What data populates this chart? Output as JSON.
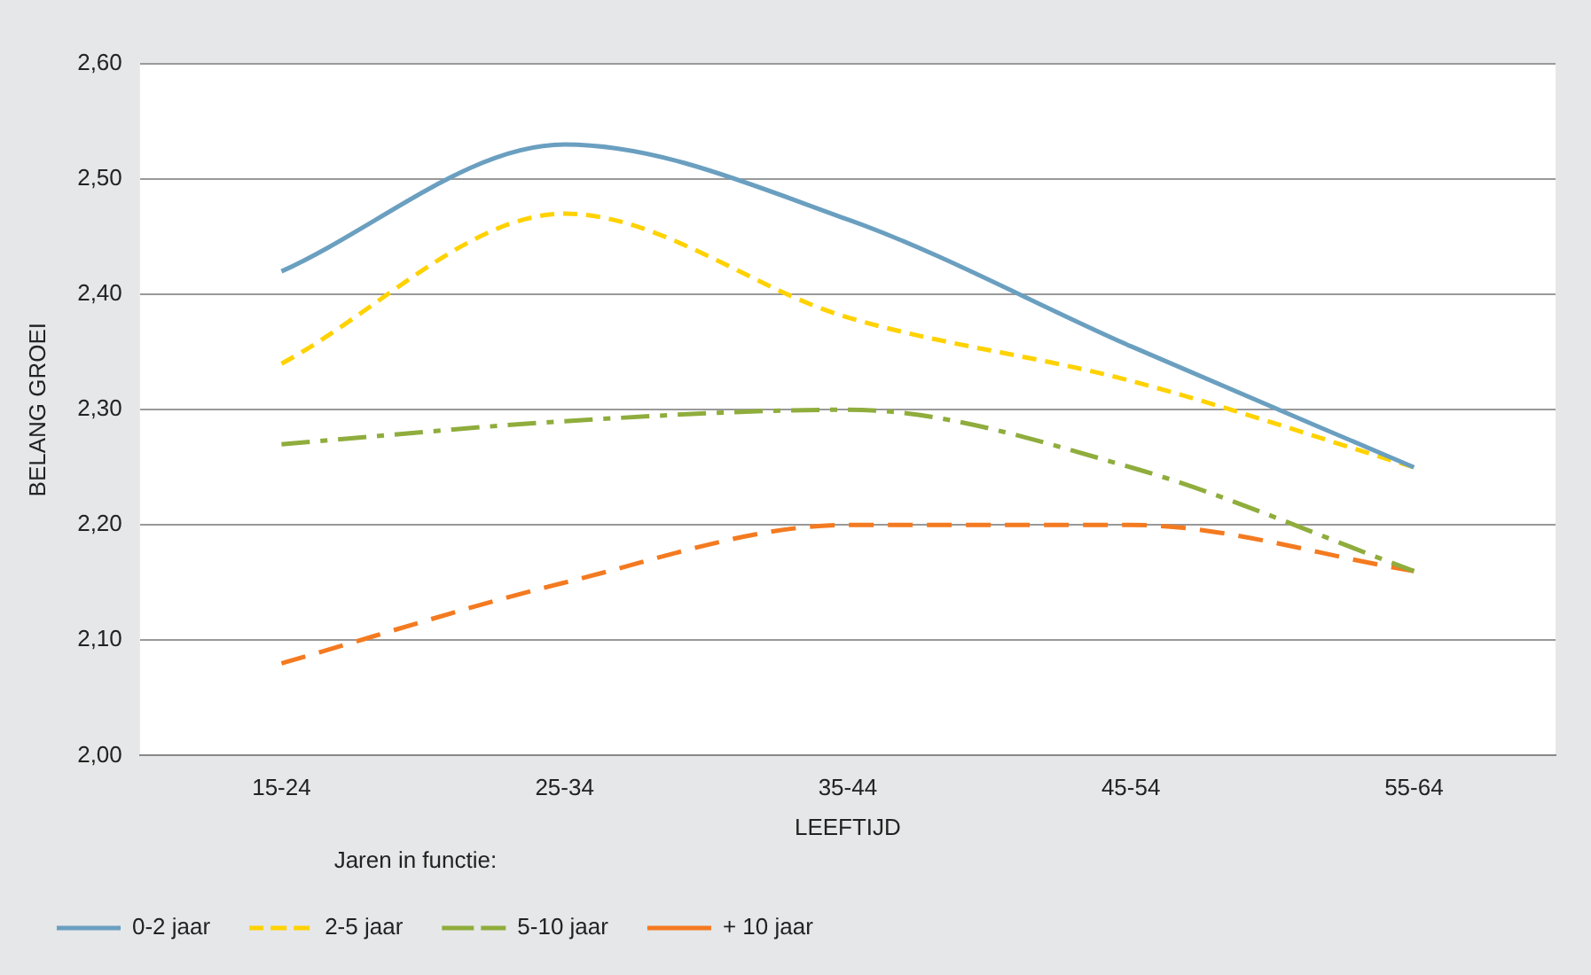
{
  "chart_data": {
    "type": "line",
    "xlabel": "LEEFTIJD",
    "ylabel": "BELANG GROEI",
    "legend_title": "Jaren in functie:",
    "categories": [
      "15-24",
      "25-34",
      "35-44",
      "45-54",
      "55-64"
    ],
    "series": [
      {
        "name": "0-2 jaar",
        "color": "#6a9fc0",
        "line_style": "solid",
        "values": [
          2.42,
          2.53,
          2.465,
          2.355,
          2.25
        ]
      },
      {
        "name": "2-5 jaar",
        "color": "#ffd200",
        "line_style": "dashed",
        "values": [
          2.34,
          2.47,
          2.38,
          2.325,
          2.25
        ]
      },
      {
        "name": "5-10 jaar",
        "color": "#8fad3c",
        "line_style": "dashdot",
        "values": [
          2.27,
          2.29,
          2.3,
          2.25,
          2.16
        ]
      },
      {
        "name": "+ 10 jaar",
        "color": "#f47a20",
        "line_style": "longdash",
        "values": [
          2.08,
          2.15,
          2.2,
          2.2,
          2.16
        ]
      }
    ],
    "ylim": [
      2.0,
      2.6
    ],
    "yticks": [
      {
        "value": 2.0,
        "label": "2,00"
      },
      {
        "value": 2.1,
        "label": "2,10"
      },
      {
        "value": 2.2,
        "label": "2,20"
      },
      {
        "value": 2.3,
        "label": "2,30"
      },
      {
        "value": 2.4,
        "label": "2,40"
      },
      {
        "value": 2.5,
        "label": "2,50"
      },
      {
        "value": 2.6,
        "label": "2,60"
      }
    ],
    "grid": "y",
    "legend": "bottom",
    "marker": "none"
  }
}
